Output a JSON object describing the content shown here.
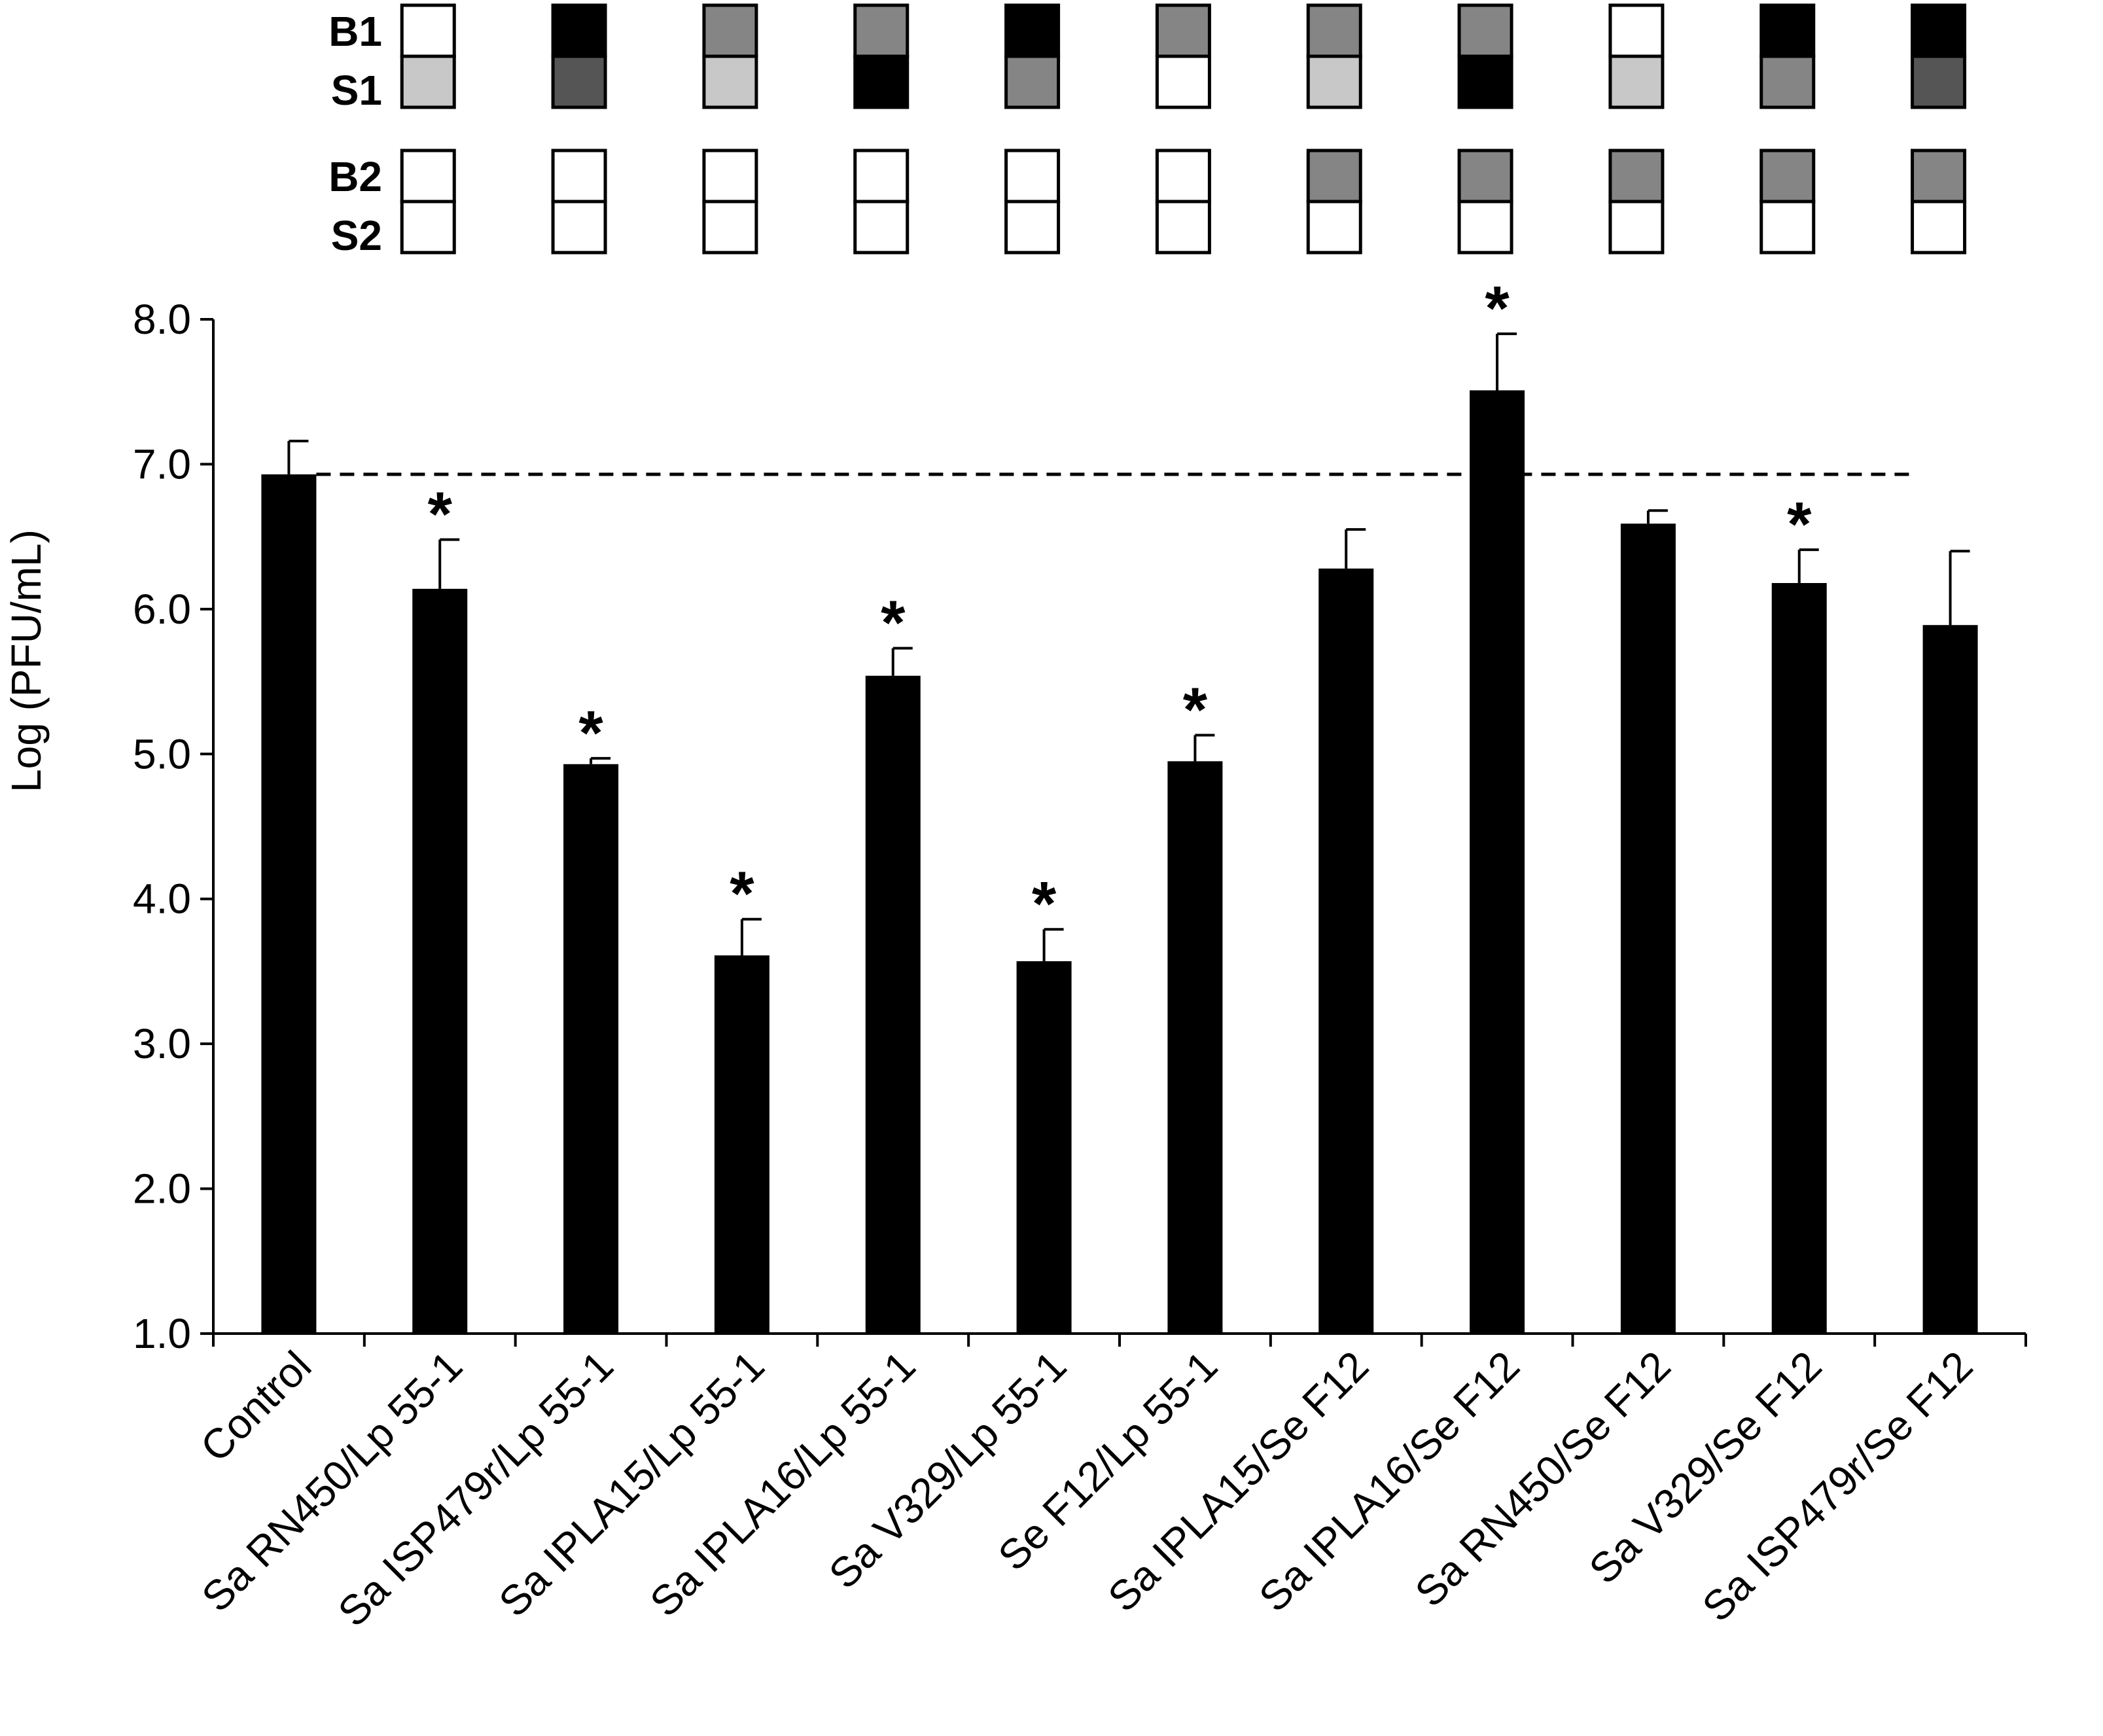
{
  "chart_data": {
    "type": "bar",
    "ylabel": "Log (PFU/mL)",
    "ylim": [
      1.0,
      8.0
    ],
    "yticks": [
      "1.0",
      "2.0",
      "3.0",
      "4.0",
      "5.0",
      "6.0",
      "7.0",
      "8.0"
    ],
    "categories": [
      "Control",
      "Sa RN450/Lp 55-1",
      "Sa ISP479r/Lp 55-1",
      "Sa IPLA15/Lp 55-1",
      "Sa IPLA16/Lp 55-1",
      "Sa V329/Lp 55-1",
      "Se F12/Lp 55-1",
      "Sa IPLA15/Se F12",
      "Sa IPLA16/Se F12",
      "Sa RN450/Se F12",
      "Sa V329/Se F12",
      "Sa ISP479r/Se F12"
    ],
    "values": [
      6.93,
      6.14,
      4.93,
      3.61,
      5.54,
      3.57,
      4.95,
      6.28,
      7.51,
      6.59,
      6.18,
      5.89
    ],
    "errors": [
      0.23,
      0.34,
      0.04,
      0.25,
      0.19,
      0.22,
      0.18,
      0.27,
      0.39,
      0.09,
      0.23,
      0.51
    ],
    "significant": [
      false,
      true,
      true,
      true,
      true,
      true,
      true,
      false,
      true,
      false,
      true,
      false
    ],
    "significance_mark": "*",
    "reference_line": 6.93,
    "bar_color": "#000000",
    "grid": false,
    "legend": "none",
    "status_grid": {
      "rows": [
        "B1",
        "S1",
        "B2",
        "S2"
      ],
      "colors": {
        "white": "#ffffff",
        "light": "#c8c8c8",
        "mid": "#858585",
        "dark": "#555555",
        "black": "#000000"
      },
      "cells": [
        [
          "white",
          "light",
          "white",
          "white"
        ],
        [
          "black",
          "dark",
          "white",
          "white"
        ],
        [
          "mid",
          "light",
          "white",
          "white"
        ],
        [
          "mid",
          "black",
          "white",
          "white"
        ],
        [
          "black",
          "mid",
          "white",
          "white"
        ],
        [
          "mid",
          "white",
          "white",
          "white"
        ],
        [
          "mid",
          "light",
          "mid",
          "white"
        ],
        [
          "mid",
          "black",
          "mid",
          "white"
        ],
        [
          "white",
          "light",
          "mid",
          "white"
        ],
        [
          "black",
          "mid",
          "mid",
          "white"
        ],
        [
          "black",
          "dark",
          "mid",
          "white"
        ]
      ]
    }
  }
}
